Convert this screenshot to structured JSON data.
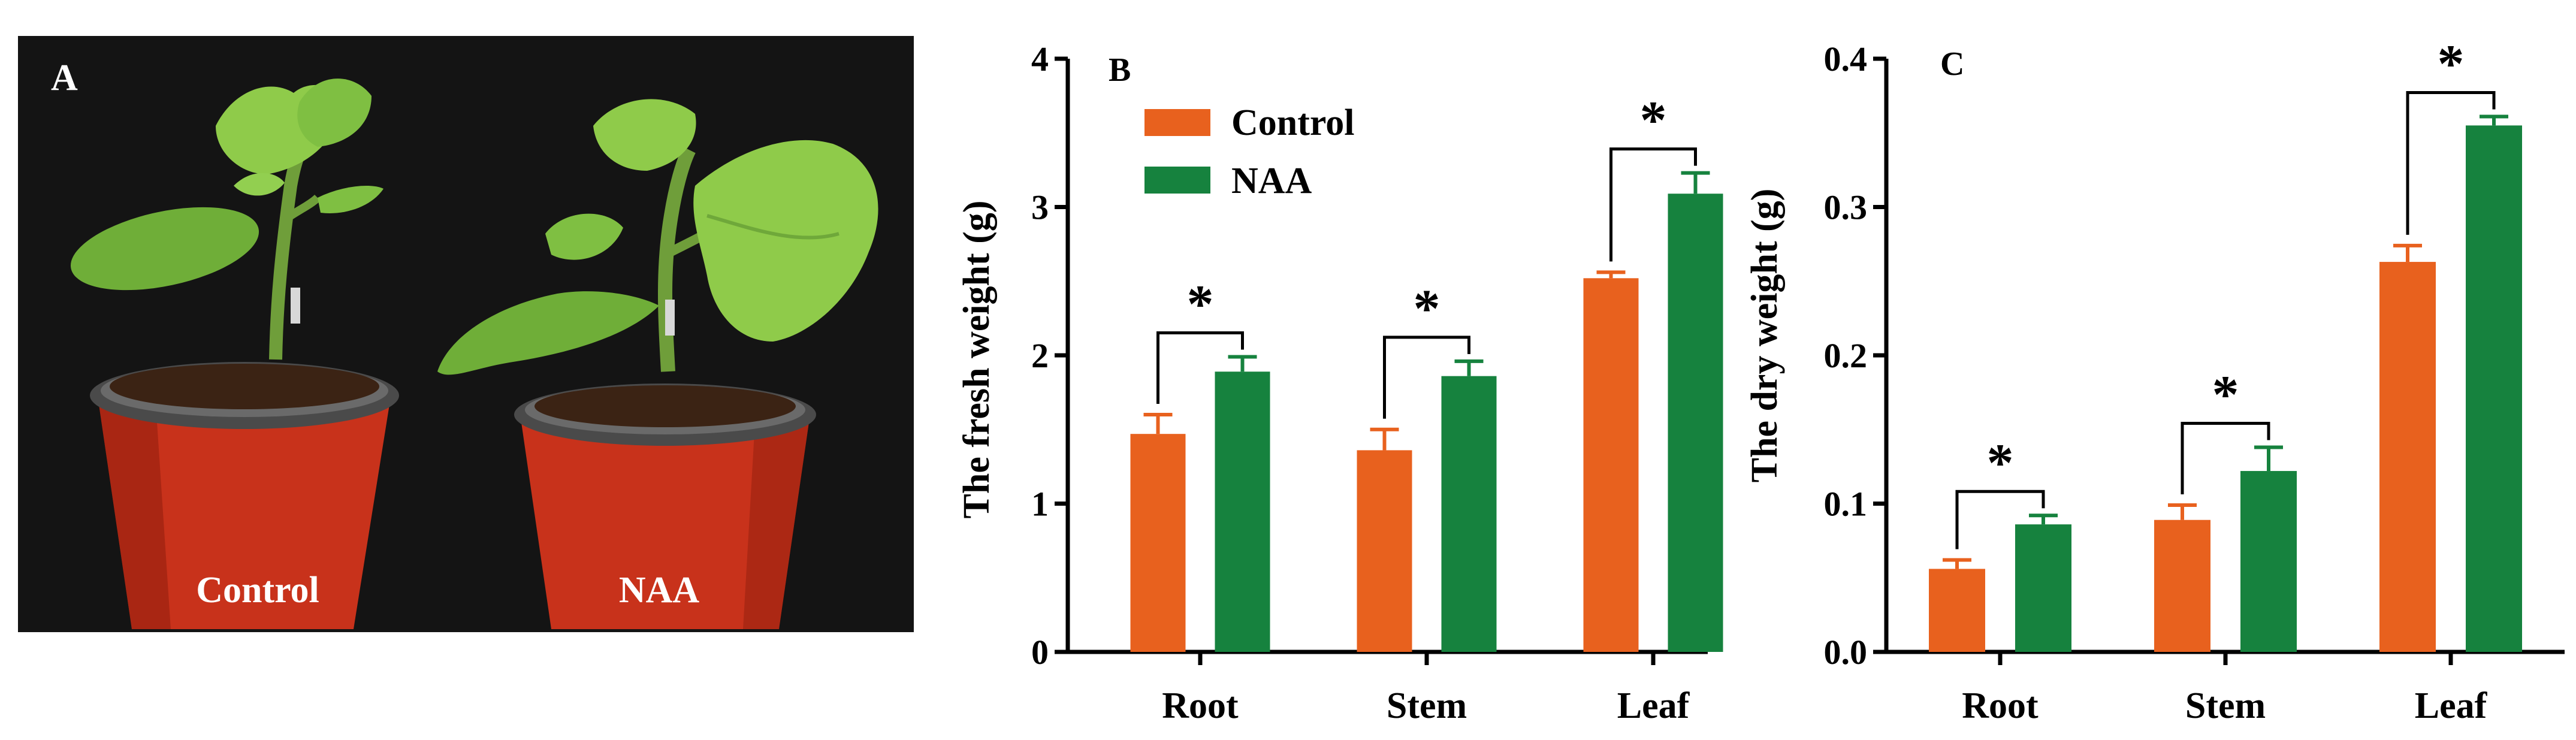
{
  "photo": {
    "panel_label": "A",
    "pot_labels": [
      "Control",
      "NAA"
    ]
  },
  "colors": {
    "control": "#E8611E",
    "naa": "#16823E",
    "soil": "#3b2314",
    "pot": "#c8321b",
    "leaf": "#7bbf3a",
    "leaf_dark": "#4f9a2a",
    "background": "#111111"
  },
  "chart_data": [
    {
      "type": "bar",
      "panel_label": "B",
      "categories": [
        "Root",
        "Stem",
        "Leaf"
      ],
      "series": [
        {
          "name": "Control",
          "values": [
            1.47,
            1.36,
            2.52
          ],
          "errors": [
            0.13,
            0.14,
            0.04
          ]
        },
        {
          "name": "NAA",
          "values": [
            1.89,
            1.86,
            3.09
          ],
          "errors": [
            0.1,
            0.1,
            0.14
          ]
        }
      ],
      "significance": [
        "*",
        "*",
        "*"
      ],
      "ylabel": "The fresh weight (g)",
      "xlabel": "",
      "ylim": [
        0,
        4
      ],
      "yticks": [
        0,
        1,
        2,
        3,
        4
      ],
      "ytick_labels": [
        "0",
        "1",
        "2",
        "3",
        "4"
      ],
      "legend": "top-left"
    },
    {
      "type": "bar",
      "panel_label": "C",
      "categories": [
        "Root",
        "Stem",
        "Leaf"
      ],
      "series": [
        {
          "name": "Control",
          "values": [
            0.056,
            0.089,
            0.263
          ],
          "errors": [
            0.006,
            0.01,
            0.011
          ]
        },
        {
          "name": "NAA",
          "values": [
            0.086,
            0.122,
            0.355
          ],
          "errors": [
            0.006,
            0.016,
            0.006
          ]
        }
      ],
      "significance": [
        "*",
        "*",
        "*"
      ],
      "ylabel": "The dry weight (g)",
      "xlabel": "",
      "ylim": [
        0,
        0.4
      ],
      "yticks": [
        0,
        0.1,
        0.2,
        0.3,
        0.4
      ],
      "ytick_labels": [
        "0.0",
        "0.1",
        "0.2",
        "0.3",
        "0.4"
      ]
    }
  ]
}
